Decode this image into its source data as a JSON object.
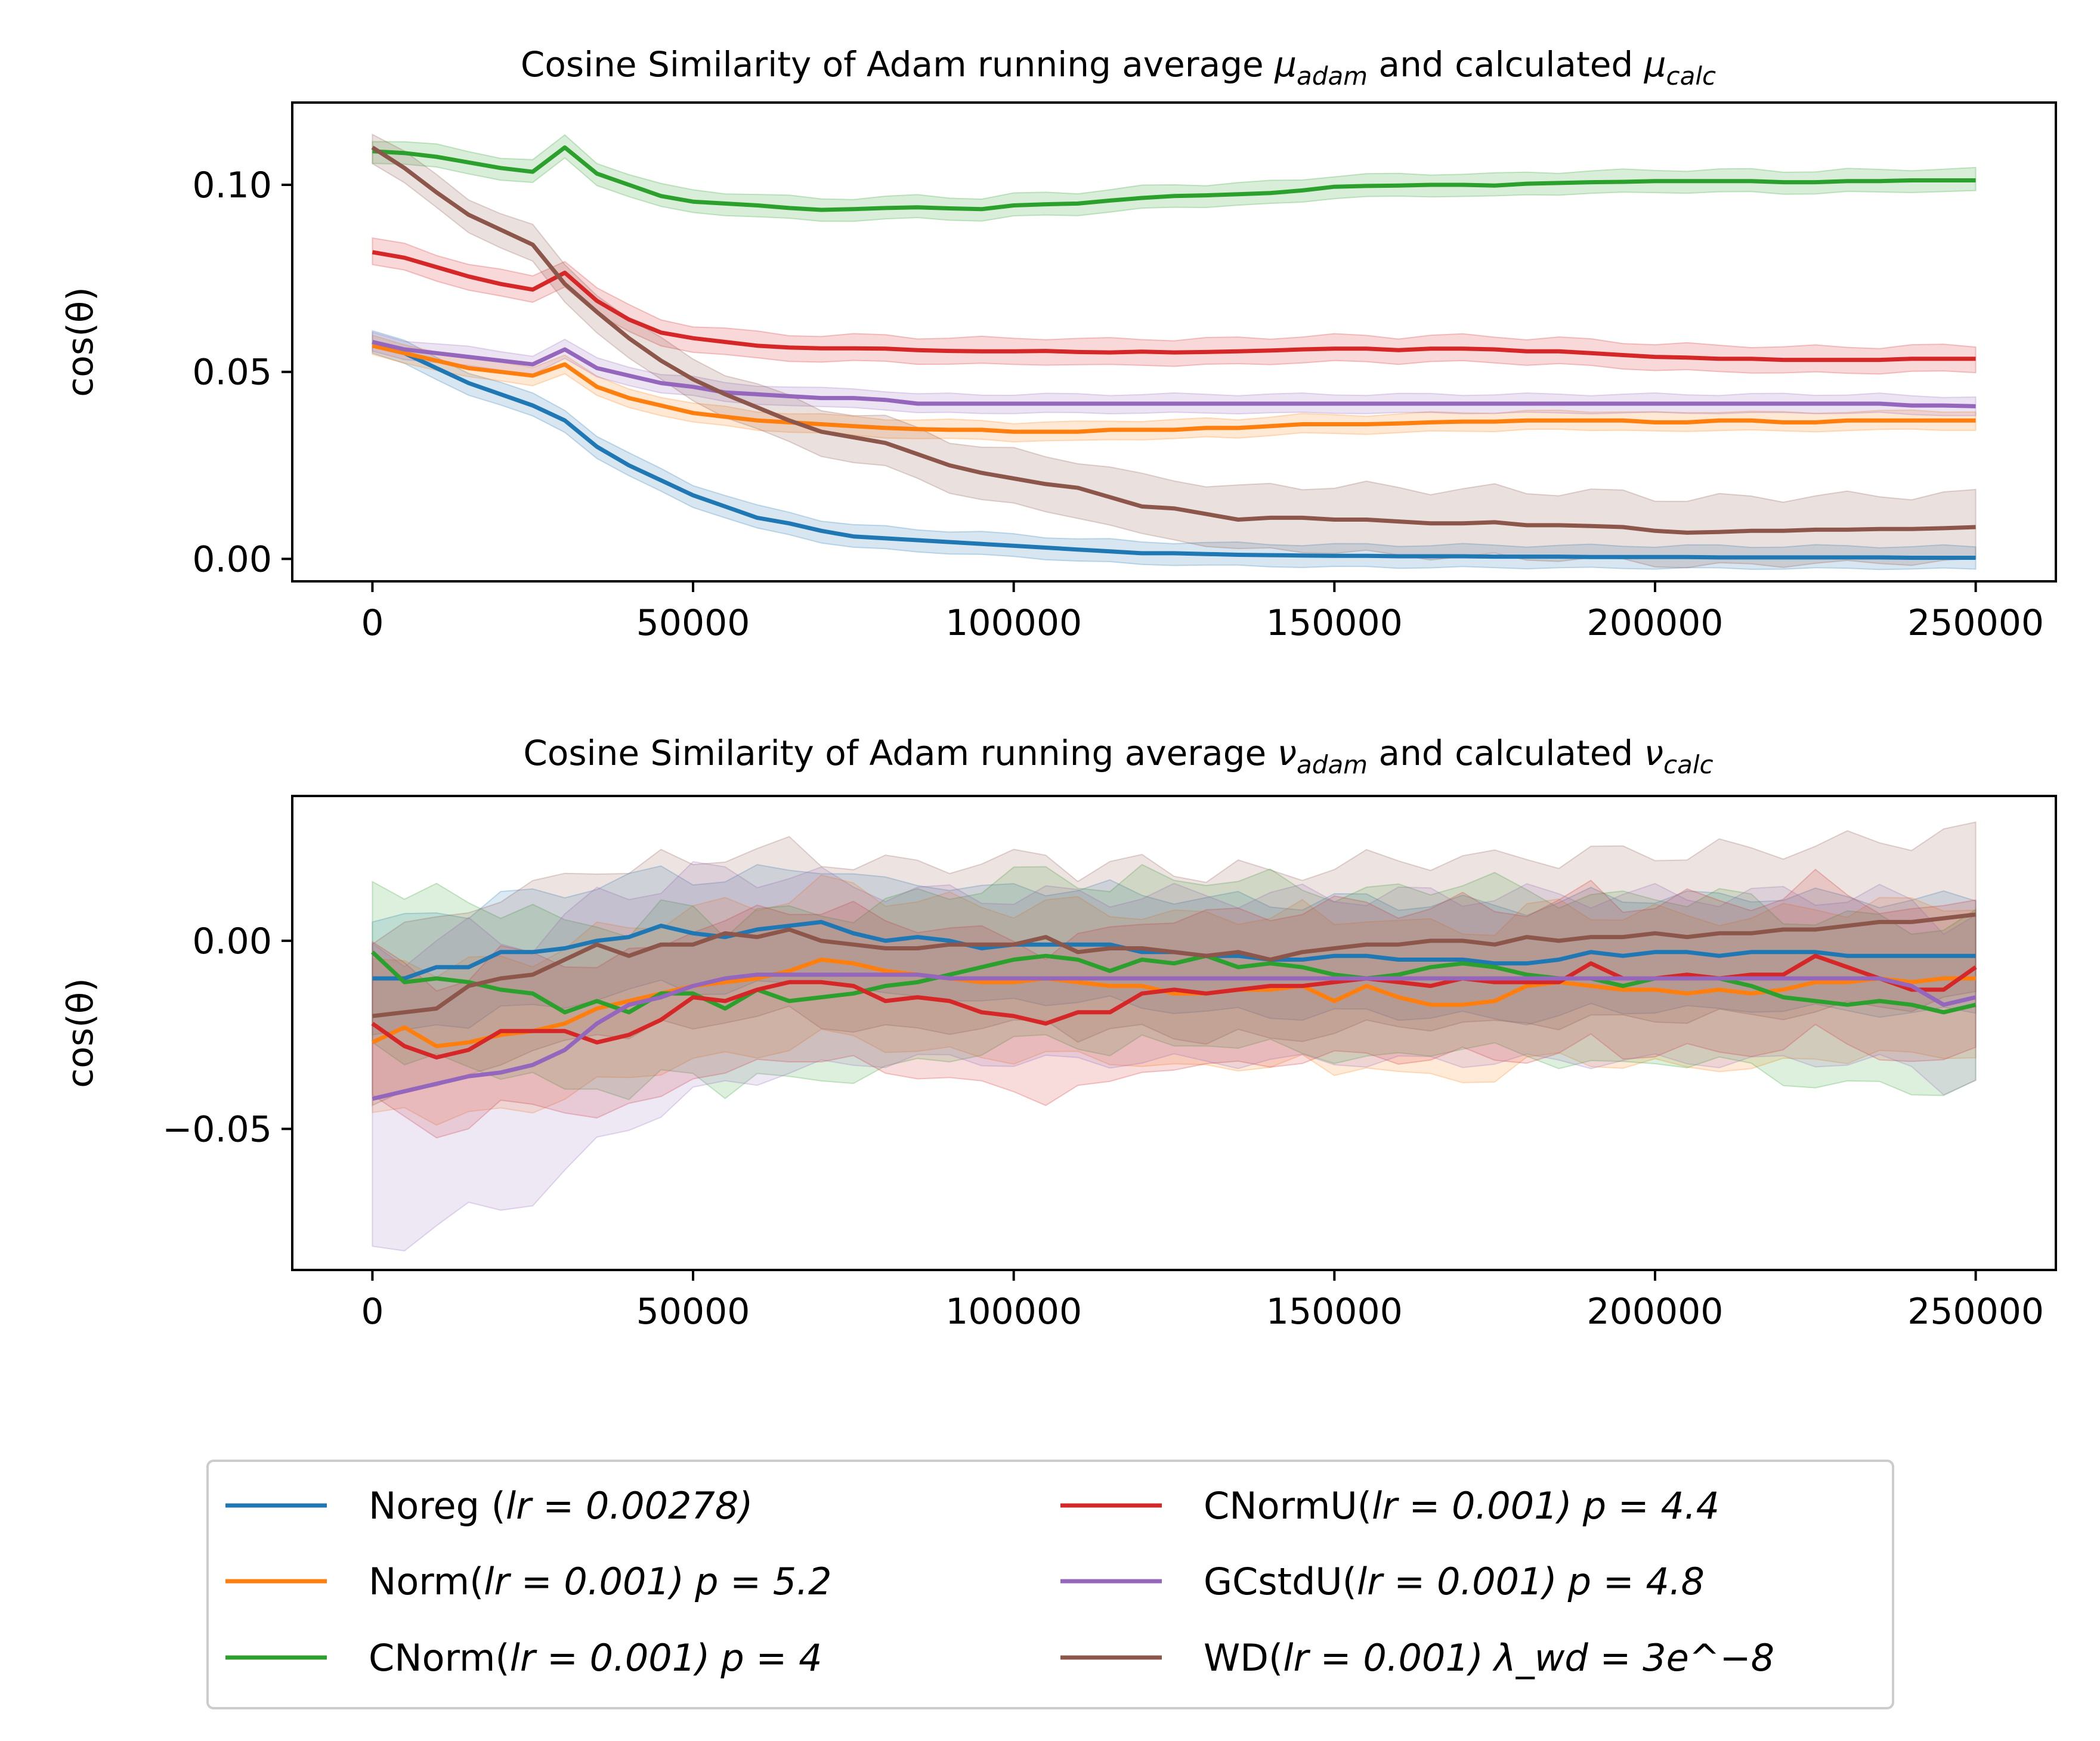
{
  "chart_data": [
    {
      "type": "line",
      "title": "Cosine Similarity of Adam running average μ_adam and calculated μ_calc",
      "title_parts": {
        "prefix": "Cosine Similarity of Adam running average ",
        "sym1": "μ",
        "sub1": "adam",
        "mid": " and calculated ",
        "sym2": "μ",
        "sub2": "calc"
      },
      "ylabel": "cos(θ)",
      "xlabel": "",
      "xlim": [
        -12500,
        262500
      ],
      "ylim": [
        -0.006,
        0.122
      ],
      "xticks": [
        0,
        50000,
        100000,
        150000,
        200000,
        250000
      ],
      "xtick_labels": [
        "0",
        "50000",
        "100000",
        "150000",
        "200000",
        "250000"
      ],
      "yticks": [
        0.0,
        0.05,
        0.1
      ],
      "ytick_labels": [
        "0.00",
        "0.05",
        "0.10"
      ],
      "grid": false,
      "x": [
        0,
        5000,
        10000,
        15000,
        20000,
        25000,
        30000,
        35000,
        40000,
        45000,
        50000,
        55000,
        60000,
        65000,
        70000,
        75000,
        80000,
        85000,
        90000,
        95000,
        100000,
        105000,
        110000,
        115000,
        120000,
        125000,
        130000,
        135000,
        140000,
        145000,
        150000,
        155000,
        160000,
        165000,
        170000,
        175000,
        180000,
        185000,
        190000,
        195000,
        200000,
        205000,
        210000,
        215000,
        220000,
        225000,
        230000,
        235000,
        240000,
        245000,
        250000
      ],
      "series": [
        {
          "name": "Noreg",
          "color": "#1f77b4",
          "band": 0.003,
          "values": [
            0.058,
            0.055,
            0.051,
            0.047,
            0.044,
            0.041,
            0.037,
            0.03,
            0.025,
            0.021,
            0.017,
            0.014,
            0.011,
            0.0095,
            0.0075,
            0.006,
            0.0055,
            0.005,
            0.0045,
            0.004,
            0.0035,
            0.003,
            0.0025,
            0.002,
            0.0015,
            0.0015,
            0.0013,
            0.0011,
            0.001,
            0.0009,
            0.0008,
            0.0008,
            0.0007,
            0.0007,
            0.0007,
            0.0006,
            0.0006,
            0.0006,
            0.0005,
            0.0005,
            0.0005,
            0.0005,
            0.0004,
            0.0004,
            0.0004,
            0.0004,
            0.0004,
            0.0004,
            0.0003,
            0.0003,
            0.0003
          ]
        },
        {
          "name": "Norm",
          "color": "#ff7f0e",
          "band": 0.0025,
          "values": [
            0.057,
            0.055,
            0.053,
            0.051,
            0.05,
            0.049,
            0.052,
            0.046,
            0.043,
            0.041,
            0.039,
            0.038,
            0.037,
            0.0365,
            0.036,
            0.0355,
            0.035,
            0.0347,
            0.0345,
            0.0345,
            0.034,
            0.034,
            0.034,
            0.0345,
            0.0345,
            0.0345,
            0.035,
            0.035,
            0.0355,
            0.036,
            0.036,
            0.036,
            0.0362,
            0.0365,
            0.0367,
            0.0367,
            0.037,
            0.037,
            0.037,
            0.037,
            0.0365,
            0.0365,
            0.037,
            0.037,
            0.0365,
            0.0365,
            0.037,
            0.037,
            0.037,
            0.037,
            0.037
          ]
        },
        {
          "name": "CNorm",
          "color": "#2ca02c",
          "band": 0.003,
          "values": [
            0.109,
            0.1085,
            0.1075,
            0.106,
            0.1045,
            0.1035,
            0.11,
            0.103,
            0.1,
            0.097,
            0.0955,
            0.095,
            0.0945,
            0.0938,
            0.0933,
            0.0935,
            0.0938,
            0.094,
            0.0937,
            0.0935,
            0.0945,
            0.0948,
            0.095,
            0.0958,
            0.0965,
            0.097,
            0.0972,
            0.0975,
            0.0978,
            0.0985,
            0.0995,
            0.0997,
            0.0998,
            0.1,
            0.1,
            0.0998,
            0.1003,
            0.1005,
            0.1007,
            0.1008,
            0.101,
            0.101,
            0.101,
            0.101,
            0.1007,
            0.1007,
            0.101,
            0.101,
            0.1012,
            0.1012,
            0.1012
          ]
        },
        {
          "name": "CNormU",
          "color": "#d62728",
          "band": 0.0035,
          "values": [
            0.082,
            0.0805,
            0.078,
            0.0755,
            0.0735,
            0.072,
            0.0765,
            0.069,
            0.064,
            0.0605,
            0.059,
            0.058,
            0.057,
            0.0565,
            0.0563,
            0.0563,
            0.0562,
            0.0558,
            0.0556,
            0.0555,
            0.0555,
            0.0556,
            0.0553,
            0.0552,
            0.0554,
            0.0552,
            0.0553,
            0.0555,
            0.0557,
            0.056,
            0.0562,
            0.0562,
            0.0558,
            0.0562,
            0.0562,
            0.056,
            0.0555,
            0.0555,
            0.055,
            0.0545,
            0.054,
            0.0538,
            0.0535,
            0.0535,
            0.0532,
            0.0532,
            0.0532,
            0.0532,
            0.0535,
            0.0535,
            0.0535
          ]
        },
        {
          "name": "GCstdU",
          "color": "#9467bd",
          "band": 0.0025,
          "values": [
            0.058,
            0.056,
            0.055,
            0.054,
            0.053,
            0.052,
            0.056,
            0.051,
            0.049,
            0.047,
            0.046,
            0.0445,
            0.044,
            0.0435,
            0.043,
            0.043,
            0.0425,
            0.0415,
            0.0415,
            0.0415,
            0.0415,
            0.0415,
            0.0415,
            0.0415,
            0.0415,
            0.0415,
            0.0415,
            0.0415,
            0.0415,
            0.0415,
            0.0415,
            0.0415,
            0.0415,
            0.0415,
            0.0415,
            0.0415,
            0.0415,
            0.0415,
            0.0415,
            0.0415,
            0.0415,
            0.0415,
            0.0415,
            0.0415,
            0.0415,
            0.0415,
            0.0415,
            0.0415,
            0.041,
            0.041,
            0.0408
          ]
        },
        {
          "name": "WD",
          "color": "#8c564b",
          "band": 0.004,
          "bandwiden": 0.005,
          "values": [
            0.11,
            0.1045,
            0.098,
            0.092,
            0.088,
            0.084,
            0.0735,
            0.066,
            0.059,
            0.053,
            0.048,
            0.044,
            0.0405,
            0.037,
            0.034,
            0.0325,
            0.031,
            0.028,
            0.025,
            0.023,
            0.0215,
            0.02,
            0.019,
            0.0165,
            0.014,
            0.0135,
            0.012,
            0.0105,
            0.011,
            0.011,
            0.0105,
            0.0105,
            0.01,
            0.0095,
            0.0095,
            0.0098,
            0.009,
            0.009,
            0.0088,
            0.0085,
            0.0075,
            0.007,
            0.0072,
            0.0075,
            0.0075,
            0.0078,
            0.0078,
            0.008,
            0.008,
            0.0082,
            0.0085
          ]
        }
      ]
    },
    {
      "type": "line",
      "title": "Cosine Similarity of Adam running average ν_adam and calculated ν_calc",
      "title_parts": {
        "prefix": "Cosine Similarity of Adam running average ",
        "sym1": "ν",
        "sub1": "adam",
        "mid": " and calculated ",
        "sym2": "ν",
        "sub2": "calc"
      },
      "ylabel": "cos(θ)",
      "xlabel": "",
      "xlim": [
        -12500,
        262500
      ],
      "ylim": [
        -0.0875,
        0.0385
      ],
      "xticks": [
        0,
        50000,
        100000,
        150000,
        200000,
        250000
      ],
      "xtick_labels": [
        "0",
        "50000",
        "100000",
        "150000",
        "200000",
        "250000"
      ],
      "yticks": [
        -0.05,
        0.0
      ],
      "ytick_labels": [
        "−0.05",
        "0.00"
      ],
      "grid": false,
      "x": [
        0,
        5000,
        10000,
        15000,
        20000,
        25000,
        30000,
        35000,
        40000,
        45000,
        50000,
        55000,
        60000,
        65000,
        70000,
        75000,
        80000,
        85000,
        90000,
        95000,
        100000,
        105000,
        110000,
        115000,
        120000,
        125000,
        130000,
        135000,
        140000,
        145000,
        150000,
        155000,
        160000,
        165000,
        170000,
        175000,
        180000,
        185000,
        190000,
        195000,
        200000,
        205000,
        210000,
        215000,
        220000,
        225000,
        230000,
        235000,
        240000,
        245000,
        250000
      ],
      "series": [
        {
          "name": "Noreg",
          "color": "#1f77b4",
          "band": 0.015,
          "values": [
            -0.01,
            -0.01,
            -0.007,
            -0.007,
            -0.003,
            -0.003,
            -0.002,
            0.0,
            0.001,
            0.004,
            0.002,
            0.001,
            0.003,
            0.004,
            0.005,
            0.002,
            0.0,
            0.001,
            0.0,
            -0.002,
            -0.001,
            -0.001,
            -0.001,
            -0.001,
            -0.003,
            -0.003,
            -0.004,
            -0.004,
            -0.005,
            -0.005,
            -0.004,
            -0.004,
            -0.005,
            -0.005,
            -0.005,
            -0.006,
            -0.006,
            -0.005,
            -0.003,
            -0.004,
            -0.003,
            -0.003,
            -0.004,
            -0.003,
            -0.003,
            -0.003,
            -0.004,
            -0.004,
            -0.004,
            -0.004,
            -0.004
          ]
        },
        {
          "name": "Norm",
          "color": "#ff7f0e",
          "band": 0.02,
          "values": [
            -0.027,
            -0.023,
            -0.028,
            -0.027,
            -0.025,
            -0.024,
            -0.022,
            -0.018,
            -0.016,
            -0.014,
            -0.012,
            -0.011,
            -0.01,
            -0.008,
            -0.005,
            -0.006,
            -0.008,
            -0.009,
            -0.01,
            -0.011,
            -0.011,
            -0.01,
            -0.011,
            -0.012,
            -0.012,
            -0.014,
            -0.014,
            -0.013,
            -0.013,
            -0.012,
            -0.016,
            -0.012,
            -0.015,
            -0.017,
            -0.017,
            -0.016,
            -0.012,
            -0.011,
            -0.012,
            -0.013,
            -0.013,
            -0.014,
            -0.013,
            -0.014,
            -0.013,
            -0.011,
            -0.011,
            -0.01,
            -0.011,
            -0.01,
            -0.01
          ]
        },
        {
          "name": "CNorm",
          "color": "#2ca02c",
          "band": 0.022,
          "values": [
            -0.003,
            -0.011,
            -0.01,
            -0.011,
            -0.013,
            -0.014,
            -0.019,
            -0.016,
            -0.019,
            -0.014,
            -0.014,
            -0.018,
            -0.013,
            -0.016,
            -0.015,
            -0.014,
            -0.012,
            -0.011,
            -0.009,
            -0.007,
            -0.005,
            -0.004,
            -0.005,
            -0.008,
            -0.005,
            -0.006,
            -0.004,
            -0.007,
            -0.006,
            -0.007,
            -0.009,
            -0.01,
            -0.009,
            -0.007,
            -0.006,
            -0.007,
            -0.009,
            -0.01,
            -0.01,
            -0.012,
            -0.01,
            -0.01,
            -0.01,
            -0.012,
            -0.015,
            -0.016,
            -0.017,
            -0.016,
            -0.017,
            -0.019,
            -0.017
          ]
        },
        {
          "name": "CNormU",
          "color": "#d62728",
          "band": 0.02,
          "values": [
            -0.022,
            -0.028,
            -0.031,
            -0.029,
            -0.024,
            -0.024,
            -0.024,
            -0.027,
            -0.025,
            -0.021,
            -0.015,
            -0.016,
            -0.013,
            -0.011,
            -0.011,
            -0.012,
            -0.016,
            -0.015,
            -0.016,
            -0.019,
            -0.02,
            -0.022,
            -0.019,
            -0.019,
            -0.014,
            -0.013,
            -0.014,
            -0.013,
            -0.012,
            -0.012,
            -0.011,
            -0.01,
            -0.011,
            -0.012,
            -0.01,
            -0.011,
            -0.011,
            -0.011,
            -0.006,
            -0.01,
            -0.01,
            -0.009,
            -0.01,
            -0.009,
            -0.009,
            -0.004,
            -0.007,
            -0.01,
            -0.013,
            -0.013,
            -0.007
          ]
        },
        {
          "name": "GCstdU",
          "color": "#9467bd",
          "band": 0.022,
          "bandwiden": -0.018,
          "values": [
            -0.042,
            -0.04,
            -0.038,
            -0.036,
            -0.035,
            -0.033,
            -0.029,
            -0.022,
            -0.017,
            -0.015,
            -0.012,
            -0.01,
            -0.009,
            -0.009,
            -0.009,
            -0.009,
            -0.009,
            -0.009,
            -0.01,
            -0.01,
            -0.01,
            -0.01,
            -0.01,
            -0.01,
            -0.01,
            -0.01,
            -0.01,
            -0.01,
            -0.01,
            -0.01,
            -0.01,
            -0.01,
            -0.01,
            -0.01,
            -0.01,
            -0.01,
            -0.01,
            -0.01,
            -0.01,
            -0.01,
            -0.01,
            -0.01,
            -0.01,
            -0.01,
            -0.01,
            -0.01,
            -0.01,
            -0.01,
            -0.012,
            -0.017,
            -0.015
          ]
        },
        {
          "name": "WD",
          "color": "#8c564b",
          "band": 0.022,
          "values": [
            -0.02,
            -0.019,
            -0.018,
            -0.012,
            -0.01,
            -0.009,
            -0.005,
            -0.001,
            -0.004,
            -0.001,
            -0.001,
            0.002,
            0.001,
            0.003,
            0.0,
            -0.001,
            -0.002,
            -0.002,
            -0.001,
            -0.001,
            -0.001,
            0.001,
            -0.003,
            -0.002,
            -0.002,
            -0.003,
            -0.004,
            -0.003,
            -0.005,
            -0.003,
            -0.002,
            -0.001,
            -0.001,
            0.0,
            0.0,
            -0.001,
            0.001,
            0.0,
            0.001,
            0.001,
            0.002,
            0.001,
            0.002,
            0.002,
            0.003,
            0.003,
            0.004,
            0.005,
            0.005,
            0.006,
            0.007
          ]
        }
      ]
    }
  ],
  "legend": {
    "placement": "bottom-center",
    "entries": [
      {
        "color": "#1f77b4",
        "main": "Noreg (",
        "lr_text": "lr = 0.00278)",
        "tail": ""
      },
      {
        "color": "#ff7f0e",
        "main": "Norm(",
        "lr_text": "lr = 0.001)",
        "tail": "p = 5.2"
      },
      {
        "color": "#2ca02c",
        "main": "CNorm(",
        "lr_text": "lr = 0.001)",
        "tail": "p = 4"
      },
      {
        "color": "#d62728",
        "main": "CNormU(",
        "lr_text": "lr = 0.001)",
        "tail": "p = 4.4"
      },
      {
        "color": "#9467bd",
        "main": "GCstdU(",
        "lr_text": "lr = 0.001)",
        "tail": "p = 4.8"
      },
      {
        "color": "#8c564b",
        "main": "WD(",
        "lr_text": "lr = 0.001)",
        "tail": "λ_wd = 3e^−8"
      }
    ]
  }
}
